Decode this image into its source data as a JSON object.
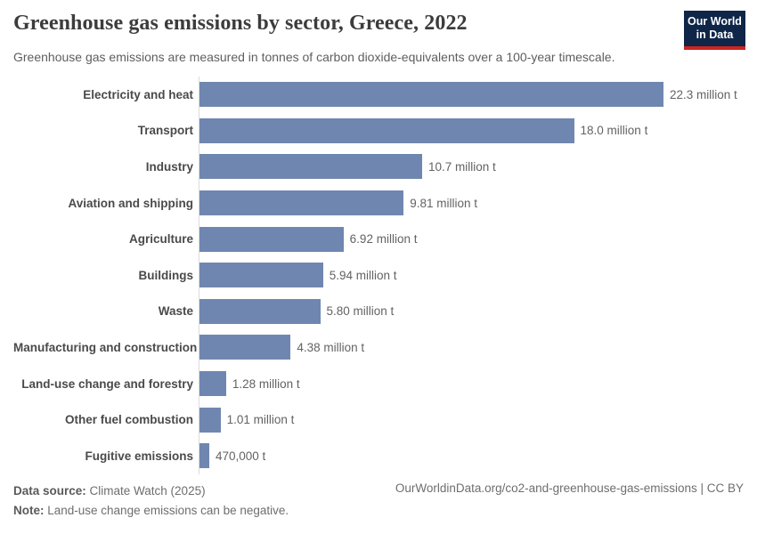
{
  "header": {
    "title": "Greenhouse gas emissions by sector, Greece, 2022",
    "subtitle": "Greenhouse gas emissions are measured in tonnes of carbon dioxide-equivalents over a 100-year timescale.",
    "logo": {
      "line1": "Our World",
      "line2": "in Data"
    }
  },
  "chart_data": {
    "type": "bar",
    "orientation": "horizontal",
    "title": "Greenhouse gas emissions by sector, Greece, 2022",
    "unit": "tonnes of CO2-equivalents",
    "categories": [
      "Electricity and heat",
      "Transport",
      "Industry",
      "Aviation and shipping",
      "Agriculture",
      "Buildings",
      "Waste",
      "Manufacturing and construction",
      "Land-use change and forestry",
      "Other fuel combustion",
      "Fugitive emissions"
    ],
    "values": [
      22.3,
      18.0,
      10.7,
      9.81,
      6.92,
      5.94,
      5.8,
      4.38,
      1.28,
      1.01,
      0.47
    ],
    "value_labels": [
      "22.3 million t",
      "18.0 million t",
      "10.7 million t",
      "9.81 million t",
      "6.92 million t",
      "5.94 million t",
      "5.80 million t",
      "4.38 million t",
      "1.28 million t",
      "1.01 million t",
      "470,000 t"
    ],
    "xlim": [
      0,
      22.3
    ],
    "grid": false,
    "legend": "none",
    "bar_color": "#6f87b0"
  },
  "footer": {
    "data_source_label": "Data source:",
    "data_source_text": " Climate Watch (2025)",
    "note_label": "Note:",
    "note_text": " Land-use change emissions can be negative.",
    "credit": "OurWorldinData.org/co2-and-greenhouse-gas-emissions | CC BY"
  }
}
